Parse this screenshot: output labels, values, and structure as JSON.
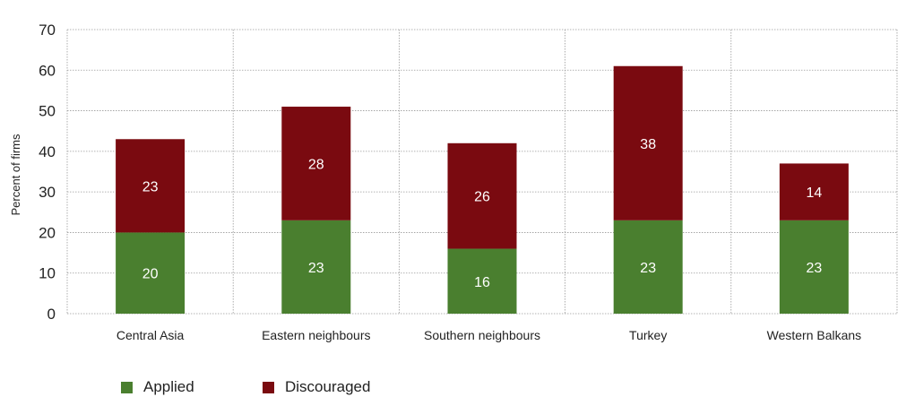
{
  "chart_data": {
    "type": "bar",
    "stacked": true,
    "title": "",
    "xlabel": "",
    "ylabel": "Percent of firms",
    "ylim": [
      0,
      70
    ],
    "yticks": [
      0,
      10,
      20,
      30,
      40,
      50,
      60,
      70
    ],
    "grid": true,
    "legend_position": "bottom-left",
    "categories": [
      "Central Asia",
      "Eastern neighbours",
      "Southern neighbours",
      "Turkey",
      "Western Balkans"
    ],
    "series": [
      {
        "name": "Applied",
        "color": "#4a7f2f",
        "values": [
          20,
          23,
          16,
          23,
          23
        ]
      },
      {
        "name": "Discouraged",
        "color": "#7a0a10",
        "values": [
          23,
          28,
          26,
          38,
          14
        ]
      }
    ]
  }
}
